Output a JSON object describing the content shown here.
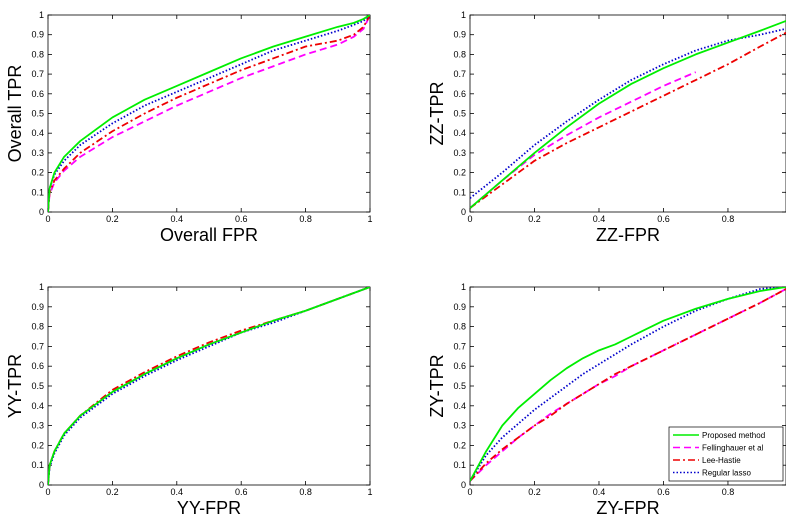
{
  "colors": {
    "proposed": "#00ee00",
    "fellinghauer": "#ff00ff",
    "lee_hastie": "#ee0000",
    "regular_lasso": "#0000cc",
    "axes": "#000000",
    "background": "#ffffff"
  },
  "line_styles": {
    "proposed": "solid",
    "fellinghauer": "dashed",
    "lee_hastie": "dash-dot",
    "regular_lasso": "dotted"
  },
  "legend": {
    "panel_index": 3,
    "placement": "lower-right",
    "entries": [
      {
        "key": "proposed",
        "label": "Proposed method"
      },
      {
        "key": "fellinghauer",
        "label": "Fellinghauer et al"
      },
      {
        "key": "lee_hastie",
        "label": "Lee-Hastie"
      },
      {
        "key": "regular_lasso",
        "label": "Regular lasso"
      }
    ]
  },
  "chart_data": [
    {
      "type": "line",
      "xlabel": "Overall FPR",
      "ylabel": "Overall TPR",
      "xlim": [
        0,
        1
      ],
      "ylim": [
        0,
        1
      ],
      "xticks": [
        "0",
        "0.2",
        "0.4",
        "0.6",
        "0.8",
        "1"
      ],
      "yticks": [
        "0",
        "0.1",
        "0.2",
        "0.3",
        "0.4",
        "0.5",
        "0.6",
        "0.7",
        "0.8",
        "0.9",
        "1"
      ],
      "grid": false,
      "x": [
        0,
        0.005,
        0.02,
        0.05,
        0.1,
        0.2,
        0.3,
        0.4,
        0.5,
        0.6,
        0.7,
        0.8,
        0.9,
        0.95,
        0.98,
        1.0
      ],
      "series": [
        {
          "key": "proposed",
          "values": [
            0,
            0.12,
            0.2,
            0.28,
            0.36,
            0.48,
            0.57,
            0.64,
            0.71,
            0.78,
            0.84,
            0.89,
            0.94,
            0.96,
            0.98,
            1.0
          ]
        },
        {
          "key": "fellinghauer",
          "values": [
            0,
            0.09,
            0.15,
            0.21,
            0.28,
            0.38,
            0.46,
            0.54,
            0.61,
            0.68,
            0.74,
            0.8,
            0.85,
            0.89,
            0.93,
            1.0
          ]
        },
        {
          "key": "lee_hastie",
          "values": [
            0,
            0.1,
            0.16,
            0.22,
            0.3,
            0.41,
            0.5,
            0.58,
            0.65,
            0.72,
            0.78,
            0.84,
            0.87,
            0.9,
            0.94,
            1.0
          ]
        },
        {
          "key": "regular_lasso",
          "values": [
            0,
            0.12,
            0.19,
            0.26,
            0.34,
            0.45,
            0.54,
            0.61,
            0.68,
            0.75,
            0.82,
            0.87,
            0.92,
            0.95,
            0.97,
            1.0
          ]
        }
      ]
    },
    {
      "type": "line",
      "xlabel": "ZZ-FPR",
      "ylabel": "ZZ-TPR",
      "xlim": [
        0,
        0.98
      ],
      "ylim": [
        0,
        1
      ],
      "xticks": [
        "0",
        "0.2",
        "0.4",
        "0.6",
        "0.8"
      ],
      "yticks": [
        "0",
        "0.1",
        "0.2",
        "0.3",
        "0.4",
        "0.5",
        "0.6",
        "0.7",
        "0.8",
        "0.9",
        "1"
      ],
      "grid": false,
      "x": [
        0,
        0.1,
        0.2,
        0.3,
        0.4,
        0.5,
        0.6,
        0.7,
        0.8,
        0.9,
        0.98
      ],
      "series": [
        {
          "key": "proposed",
          "values": [
            0.02,
            0.16,
            0.3,
            0.43,
            0.55,
            0.65,
            0.73,
            0.8,
            0.86,
            0.92,
            0.97
          ]
        },
        {
          "key": "fellinghauer",
          "values": [
            0.02,
            0.16,
            0.29,
            0.39,
            0.48,
            0.56,
            0.64,
            0.71,
            null,
            null,
            null
          ]
        },
        {
          "key": "lee_hastie",
          "values": [
            0.02,
            0.14,
            0.26,
            0.35,
            0.43,
            0.51,
            0.59,
            0.67,
            0.75,
            0.84,
            0.91
          ]
        },
        {
          "key": "regular_lasso",
          "values": [
            0.07,
            0.2,
            0.34,
            0.46,
            0.57,
            0.67,
            0.75,
            0.82,
            0.87,
            0.9,
            0.93
          ]
        }
      ]
    },
    {
      "type": "line",
      "xlabel": "YY-FPR",
      "ylabel": "YY-TPR",
      "xlim": [
        0,
        1
      ],
      "ylim": [
        0,
        1
      ],
      "xticks": [
        "0",
        "0.2",
        "0.4",
        "0.6",
        "0.8",
        "1"
      ],
      "yticks": [
        "0",
        "0.1",
        "0.2",
        "0.3",
        "0.4",
        "0.5",
        "0.6",
        "0.7",
        "0.8",
        "0.9",
        "1"
      ],
      "grid": false,
      "x": [
        0,
        0.005,
        0.02,
        0.05,
        0.1,
        0.2,
        0.3,
        0.4,
        0.5,
        0.6,
        0.7,
        0.8,
        0.9,
        1.0
      ],
      "series": [
        {
          "key": "proposed",
          "values": [
            0,
            0.1,
            0.17,
            0.26,
            0.35,
            0.47,
            0.56,
            0.64,
            0.71,
            0.77,
            0.83,
            0.88,
            0.94,
            1.0
          ]
        },
        {
          "key": "fellinghauer",
          "values": [
            0,
            0.1,
            0.17,
            0.26,
            0.35,
            0.47,
            0.56,
            0.64,
            0.71,
            0.77,
            0.83,
            0.88,
            0.94,
            1.0
          ]
        },
        {
          "key": "lee_hastie",
          "values": [
            0,
            0.1,
            0.17,
            0.26,
            0.35,
            0.48,
            0.57,
            0.65,
            0.72,
            0.78,
            0.83,
            0.88,
            0.94,
            1.0
          ]
        },
        {
          "key": "regular_lasso",
          "values": [
            0,
            0.09,
            0.16,
            0.25,
            0.34,
            0.46,
            0.55,
            0.63,
            0.7,
            0.77,
            0.82,
            0.88,
            0.94,
            1.0
          ]
        }
      ]
    },
    {
      "type": "line",
      "xlabel": "ZY-FPR",
      "ylabel": "ZY-TPR",
      "xlim": [
        0,
        0.98
      ],
      "ylim": [
        0,
        1
      ],
      "xticks": [
        "0",
        "0.2",
        "0.4",
        "0.6",
        "0.8"
      ],
      "yticks": [
        "0",
        "0.1",
        "0.2",
        "0.3",
        "0.4",
        "0.5",
        "0.6",
        "0.7",
        "0.8",
        "0.9",
        "1"
      ],
      "grid": false,
      "x": [
        0,
        0.05,
        0.1,
        0.15,
        0.2,
        0.25,
        0.3,
        0.35,
        0.4,
        0.45,
        0.5,
        0.6,
        0.7,
        0.8,
        0.9,
        0.98
      ],
      "series": [
        {
          "key": "proposed",
          "values": [
            0.02,
            0.17,
            0.3,
            0.39,
            0.46,
            0.53,
            0.59,
            0.64,
            0.68,
            0.71,
            0.75,
            0.83,
            0.89,
            0.94,
            0.98,
            1.0
          ]
        },
        {
          "key": "fellinghauer",
          "values": [
            0.02,
            0.1,
            0.17,
            0.24,
            0.3,
            0.36,
            0.41,
            0.46,
            0.51,
            0.55,
            0.6,
            0.68,
            0.76,
            0.84,
            0.92,
            0.99
          ]
        },
        {
          "key": "lee_hastie",
          "values": [
            0.02,
            0.11,
            0.18,
            0.24,
            0.3,
            0.35,
            0.41,
            0.46,
            0.51,
            0.56,
            0.6,
            0.68,
            0.76,
            0.84,
            0.92,
            0.99
          ]
        },
        {
          "key": "regular_lasso",
          "values": [
            0.02,
            0.15,
            0.24,
            0.31,
            0.38,
            0.44,
            0.5,
            0.56,
            0.61,
            0.66,
            0.71,
            0.8,
            0.88,
            0.94,
            0.99,
            1.0
          ]
        }
      ]
    }
  ]
}
